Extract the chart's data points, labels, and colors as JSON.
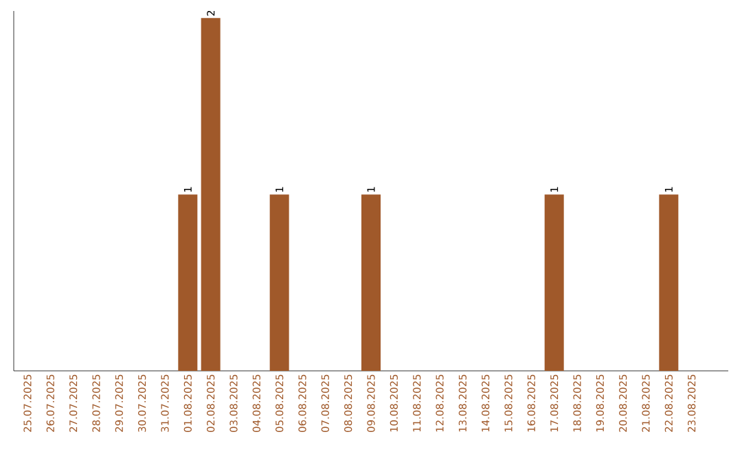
{
  "chart_data": {
    "type": "bar",
    "categories": [
      "25.07.2025",
      "26.07.2025",
      "27.07.2025",
      "28.07.2025",
      "29.07.2025",
      "30.07.2025",
      "31.07.2025",
      "01.08.2025",
      "02.08.2025",
      "03.08.2025",
      "04.08.2025",
      "05.08.2025",
      "06.08.2025",
      "07.08.2025",
      "08.08.2025",
      "09.08.2025",
      "10.08.2025",
      "11.08.2025",
      "12.08.2025",
      "13.08.2025",
      "14.08.2025",
      "15.08.2025",
      "16.08.2025",
      "17.08.2025",
      "18.08.2025",
      "19.08.2025",
      "20.08.2025",
      "21.08.2025",
      "22.08.2025",
      "23.08.2025"
    ],
    "values": [
      0,
      0,
      0,
      0,
      0,
      0,
      0,
      1,
      2,
      0,
      0,
      1,
      0,
      0,
      0,
      1,
      0,
      0,
      0,
      0,
      0,
      0,
      0,
      1,
      0,
      0,
      0,
      0,
      1,
      0
    ],
    "value_labels": [
      null,
      null,
      null,
      null,
      null,
      null,
      null,
      "1",
      "2",
      null,
      null,
      "1",
      null,
      null,
      null,
      "1",
      null,
      null,
      null,
      null,
      null,
      null,
      null,
      "1",
      null,
      null,
      null,
      null,
      "1",
      null
    ],
    "color": "#a0592a",
    "tick_labels": "x"
  }
}
